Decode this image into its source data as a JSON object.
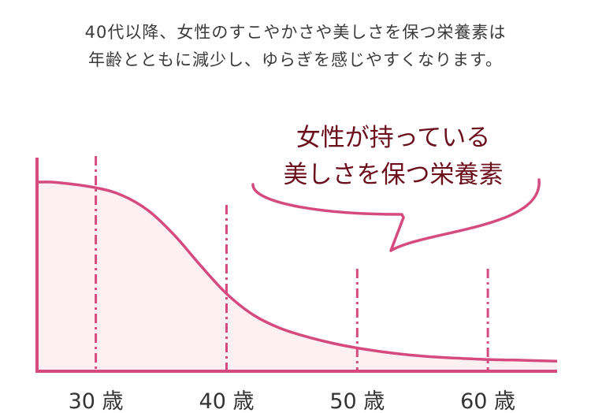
{
  "intro": {
    "line1": "40代以降、女性のすこやかさや美しさを保つ栄養素は",
    "line2": "年齢とともに減少し、ゆらぎを感じやすくなります。"
  },
  "colors": {
    "accent": "#d54a7f",
    "fill": "#fcf0f3",
    "callout_text": "#6b0f1d",
    "body_text": "#3a3a3a"
  },
  "chart_data": {
    "type": "area",
    "title": "",
    "xlabel": "",
    "ylabel": "",
    "x_ticks": [
      30,
      40,
      50,
      60
    ],
    "tick_labels": [
      "30 歳",
      "40 歳",
      "50 歳",
      "60 歳"
    ],
    "xlim": [
      25.5,
      65.3
    ],
    "ylim": [
      0,
      100
    ],
    "series": [
      {
        "x": [
          25.5,
          27,
          30,
          32,
          34,
          36,
          38,
          40,
          42,
          44,
          46,
          48,
          50,
          52,
          54,
          56,
          58,
          60,
          62,
          65.3
        ],
        "y": [
          100,
          99.8,
          97,
          93,
          85,
          72,
          56,
          41,
          30,
          23,
          18.5,
          15,
          12.3,
          10.2,
          8.6,
          7.5,
          6.8,
          6.2,
          5.9,
          5.3
        ]
      }
    ],
    "grid": false,
    "annotation": {
      "line1": "女性が持っている",
      "line2": "美しさを保つ栄養素"
    }
  }
}
